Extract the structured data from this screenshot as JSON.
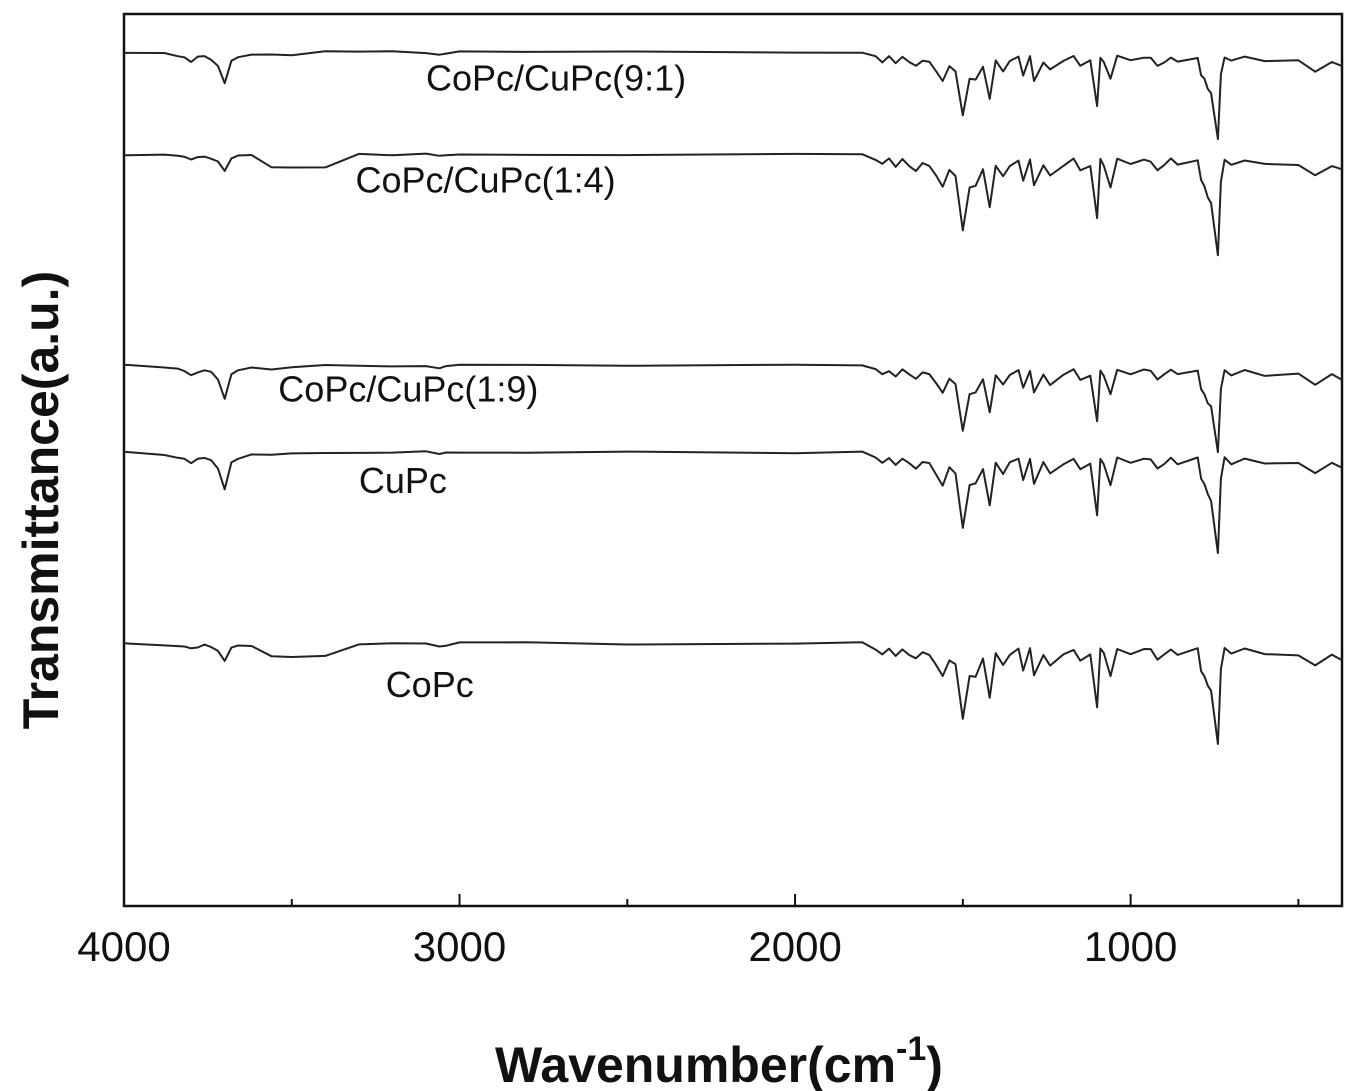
{
  "chart_data": {
    "type": "line",
    "title": "",
    "xlabel": "Wavenumber(cm",
    "xlabel_sup": "-1",
    "xlabel_close": ")",
    "ylabel": "Transmittance(a.u.)",
    "xlim": [
      4000,
      370
    ],
    "x_reversed": true,
    "xticks": [
      4000,
      3000,
      2000,
      1000
    ],
    "xtick_labels": [
      "4000",
      "3000",
      "2000",
      "1000"
    ],
    "y_tick_labels": false,
    "grid": false,
    "legend": "none (labels placed inline near each trace)",
    "series": [
      {
        "name": "CoPc/CuPc(9:1)",
        "baseline": 4.35,
        "depth": 0.12,
        "profile": "B",
        "x": [
          4000,
          3880,
          3840,
          3820,
          3800,
          3780,
          3760,
          3740,
          3720,
          3700,
          3680,
          3660,
          3620,
          3560,
          3500,
          3400,
          3300,
          3200,
          3100,
          3060,
          3040,
          3000,
          2800,
          2500,
          2000,
          1800,
          1760,
          1740,
          1720,
          1700,
          1680,
          1660,
          1640,
          1620,
          1600,
          1580,
          1560,
          1540,
          1522,
          1500,
          1480,
          1462,
          1440,
          1420,
          1402,
          1380,
          1360,
          1334,
          1320,
          1300,
          1288,
          1260,
          1240,
          1200,
          1170,
          1150,
          1120,
          1100,
          1090,
          1080,
          1060,
          1040,
          1000,
          960,
          940,
          920,
          900,
          880,
          860,
          800,
          790,
          780,
          770,
          760,
          740,
          731,
          720,
          700,
          660,
          600,
          500,
          450,
          400,
          370
        ],
        "y": [
          0,
          0.02,
          0.04,
          0.06,
          0.1,
          0.06,
          0.04,
          0.08,
          0.15,
          0.35,
          0.1,
          0.05,
          0.03,
          0.03,
          0.02,
          0.0,
          0.0,
          0.0,
          0.0,
          0.02,
          0.01,
          0.0,
          0.0,
          0.0,
          0.0,
          0.0,
          0.05,
          0.1,
          0.05,
          0.12,
          0.05,
          0.1,
          0.15,
          0.08,
          0.1,
          0.2,
          0.3,
          0.15,
          0.2,
          0.7,
          0.3,
          0.3,
          0.15,
          0.5,
          0.1,
          0.2,
          0.1,
          0.05,
          0.25,
          0.05,
          0.3,
          0.1,
          0.2,
          0.1,
          0.05,
          0.15,
          0.1,
          0.6,
          0.05,
          0.1,
          0.3,
          0.05,
          0.1,
          0.05,
          0.06,
          0.15,
          0.1,
          0.05,
          0.1,
          0.05,
          0.25,
          0.3,
          0.4,
          0.45,
          0.95,
          0.25,
          0.05,
          0.1,
          0.05,
          0.1,
          0.1,
          0.2,
          0.1,
          0.15
        ]
      },
      {
        "name": "CoPc/CuPc(1:4)",
        "baseline": 3.95,
        "depth": 0.14,
        "profile": "A",
        "x": [
          4000,
          3880,
          3840,
          3820,
          3800,
          3780,
          3760,
          3740,
          3720,
          3700,
          3680,
          3660,
          3620,
          3560,
          3500,
          3400,
          3300,
          3200,
          3100,
          3060,
          3040,
          3000,
          2800,
          2500,
          2000,
          1800,
          1760,
          1740,
          1720,
          1700,
          1680,
          1660,
          1640,
          1620,
          1600,
          1580,
          1560,
          1540,
          1522,
          1500,
          1480,
          1462,
          1440,
          1420,
          1402,
          1380,
          1360,
          1334,
          1320,
          1300,
          1288,
          1260,
          1240,
          1200,
          1170,
          1150,
          1120,
          1100,
          1090,
          1080,
          1060,
          1040,
          1000,
          960,
          940,
          920,
          900,
          880,
          860,
          800,
          790,
          780,
          770,
          760,
          740,
          731,
          720,
          700,
          660,
          600,
          500,
          450,
          400,
          370
        ],
        "y": [
          0,
          0.02,
          0.04,
          0.06,
          0.1,
          0.06,
          0.04,
          0.08,
          0.15,
          0.35,
          0.1,
          0.05,
          0.03,
          0.03,
          0.02,
          0.0,
          0.0,
          0.0,
          0.0,
          0.02,
          0.01,
          0.0,
          0.0,
          0.0,
          0.0,
          0.0,
          0.05,
          0.1,
          0.05,
          0.12,
          0.05,
          0.1,
          0.15,
          0.08,
          0.1,
          0.2,
          0.3,
          0.15,
          0.2,
          0.7,
          0.3,
          0.3,
          0.15,
          0.5,
          0.1,
          0.2,
          0.1,
          0.05,
          0.25,
          0.05,
          0.3,
          0.1,
          0.2,
          0.1,
          0.05,
          0.15,
          0.1,
          0.6,
          0.05,
          0.1,
          0.3,
          0.05,
          0.1,
          0.05,
          0.06,
          0.15,
          0.1,
          0.05,
          0.1,
          0.05,
          0.25,
          0.3,
          0.4,
          0.45,
          0.95,
          0.25,
          0.05,
          0.1,
          0.05,
          0.1,
          0.1,
          0.2,
          0.1,
          0.15
        ]
      },
      {
        "name": "CoPc/CuPc(1:9)",
        "baseline": 3.12,
        "depth": 0.12,
        "profile": "B",
        "x": [
          4000,
          3880,
          3840,
          3820,
          3800,
          3780,
          3760,
          3740,
          3720,
          3700,
          3680,
          3660,
          3620,
          3560,
          3500,
          3400,
          3300,
          3200,
          3100,
          3060,
          3040,
          3000,
          2800,
          2500,
          2000,
          1800,
          1760,
          1740,
          1720,
          1700,
          1680,
          1660,
          1640,
          1620,
          1600,
          1580,
          1560,
          1540,
          1522,
          1500,
          1480,
          1462,
          1440,
          1420,
          1402,
          1380,
          1360,
          1334,
          1320,
          1300,
          1288,
          1260,
          1240,
          1200,
          1170,
          1150,
          1120,
          1100,
          1090,
          1080,
          1060,
          1040,
          1000,
          960,
          940,
          920,
          900,
          880,
          860,
          800,
          790,
          780,
          770,
          760,
          740,
          731,
          720,
          700,
          660,
          600,
          500,
          450,
          400,
          370
        ],
        "y": [
          0,
          0.02,
          0.04,
          0.06,
          0.1,
          0.06,
          0.04,
          0.08,
          0.15,
          0.35,
          0.1,
          0.05,
          0.03,
          0.03,
          0.02,
          0.0,
          0.0,
          0.0,
          0.0,
          0.02,
          0.01,
          0.0,
          0.0,
          0.0,
          0.0,
          0.0,
          0.05,
          0.1,
          0.05,
          0.12,
          0.05,
          0.1,
          0.15,
          0.08,
          0.1,
          0.2,
          0.3,
          0.15,
          0.2,
          0.7,
          0.3,
          0.3,
          0.15,
          0.5,
          0.1,
          0.2,
          0.1,
          0.05,
          0.25,
          0.05,
          0.3,
          0.1,
          0.2,
          0.1,
          0.05,
          0.15,
          0.1,
          0.6,
          0.05,
          0.1,
          0.3,
          0.05,
          0.1,
          0.05,
          0.06,
          0.15,
          0.1,
          0.05,
          0.1,
          0.05,
          0.25,
          0.3,
          0.4,
          0.45,
          0.95,
          0.25,
          0.05,
          0.1,
          0.05,
          0.1,
          0.1,
          0.2,
          0.1,
          0.15
        ]
      },
      {
        "name": "CuPc",
        "baseline": 2.78,
        "depth": 0.14,
        "profile": "B",
        "x": [
          4000,
          3880,
          3840,
          3820,
          3800,
          3780,
          3760,
          3740,
          3720,
          3700,
          3680,
          3660,
          3620,
          3560,
          3500,
          3400,
          3300,
          3200,
          3100,
          3060,
          3040,
          3000,
          2800,
          2500,
          2000,
          1800,
          1760,
          1740,
          1720,
          1700,
          1680,
          1660,
          1640,
          1620,
          1600,
          1580,
          1560,
          1540,
          1522,
          1500,
          1480,
          1462,
          1440,
          1420,
          1402,
          1380,
          1360,
          1334,
          1320,
          1300,
          1288,
          1260,
          1240,
          1200,
          1170,
          1150,
          1120,
          1100,
          1090,
          1080,
          1060,
          1040,
          1000,
          960,
          940,
          920,
          900,
          880,
          860,
          800,
          790,
          780,
          770,
          760,
          740,
          731,
          720,
          700,
          660,
          600,
          500,
          450,
          400,
          370
        ],
        "y": [
          0,
          0.02,
          0.04,
          0.06,
          0.1,
          0.06,
          0.04,
          0.08,
          0.15,
          0.35,
          0.1,
          0.05,
          0.03,
          0.03,
          0.02,
          0.0,
          0.0,
          0.0,
          0.0,
          0.02,
          0.01,
          0.0,
          0.0,
          0.0,
          0.0,
          0.0,
          0.05,
          0.1,
          0.05,
          0.12,
          0.05,
          0.1,
          0.15,
          0.08,
          0.1,
          0.2,
          0.3,
          0.15,
          0.2,
          0.7,
          0.3,
          0.3,
          0.15,
          0.5,
          0.1,
          0.2,
          0.1,
          0.05,
          0.25,
          0.05,
          0.3,
          0.1,
          0.2,
          0.1,
          0.05,
          0.15,
          0.1,
          0.6,
          0.05,
          0.1,
          0.3,
          0.05,
          0.1,
          0.05,
          0.06,
          0.15,
          0.1,
          0.05,
          0.1,
          0.05,
          0.25,
          0.3,
          0.4,
          0.45,
          0.95,
          0.25,
          0.05,
          0.1,
          0.05,
          0.1,
          0.1,
          0.2,
          0.1,
          0.15
        ]
      },
      {
        "name": "CoPc",
        "baseline": 2.03,
        "depth": 0.14,
        "profile": "A",
        "x": [
          4000,
          3880,
          3840,
          3820,
          3800,
          3780,
          3760,
          3740,
          3720,
          3700,
          3680,
          3660,
          3620,
          3560,
          3500,
          3400,
          3300,
          3200,
          3100,
          3060,
          3040,
          3000,
          2800,
          2500,
          2000,
          1800,
          1760,
          1740,
          1720,
          1700,
          1680,
          1660,
          1640,
          1620,
          1600,
          1580,
          1560,
          1540,
          1522,
          1500,
          1480,
          1462,
          1440,
          1420,
          1402,
          1380,
          1360,
          1334,
          1320,
          1300,
          1288,
          1260,
          1240,
          1200,
          1170,
          1150,
          1120,
          1100,
          1090,
          1080,
          1060,
          1040,
          1000,
          960,
          940,
          920,
          900,
          880,
          860,
          800,
          790,
          780,
          770,
          760,
          740,
          731,
          720,
          700,
          660,
          600,
          500,
          450,
          400,
          370
        ],
        "y": [
          0,
          0.02,
          0.04,
          0.06,
          0.1,
          0.06,
          0.04,
          0.08,
          0.15,
          0.35,
          0.1,
          0.05,
          0.03,
          0.03,
          0.02,
          0.0,
          0.0,
          0.0,
          0.0,
          0.02,
          0.01,
          0.0,
          0.0,
          0.0,
          0.0,
          0.0,
          0.05,
          0.1,
          0.05,
          0.12,
          0.05,
          0.1,
          0.15,
          0.08,
          0.1,
          0.2,
          0.3,
          0.15,
          0.2,
          0.7,
          0.3,
          0.3,
          0.15,
          0.5,
          0.1,
          0.2,
          0.1,
          0.05,
          0.25,
          0.05,
          0.3,
          0.1,
          0.2,
          0.1,
          0.05,
          0.15,
          0.1,
          0.6,
          0.05,
          0.1,
          0.3,
          0.05,
          0.1,
          0.05,
          0.06,
          0.15,
          0.1,
          0.05,
          0.1,
          0.05,
          0.25,
          0.3,
          0.4,
          0.45,
          0.95,
          0.25,
          0.05,
          0.1,
          0.05,
          0.1,
          0.1,
          0.2,
          0.1,
          0.15
        ]
      }
    ],
    "series_label_positions": [
      {
        "name": "CoPc/CuPc(9:1)",
        "x_data": 3100,
        "y_data": 4.2
      },
      {
        "name": "CoPc/CuPc(1:4)",
        "x_data": 3310,
        "y_data": 3.8
      },
      {
        "name": "CoPc/CuPc(1:9)",
        "x_data": 3540,
        "y_data": 2.98
      },
      {
        "name": "CuPc",
        "x_data": 3300,
        "y_data": 2.62
      },
      {
        "name": "CoPc",
        "x_data": 3220,
        "y_data": 1.82
      }
    ],
    "ylim": [
      1.0,
      4.5
    ],
    "colors": {
      "line": "#222222",
      "axis": "#111111",
      "background": "#ffffff"
    }
  }
}
